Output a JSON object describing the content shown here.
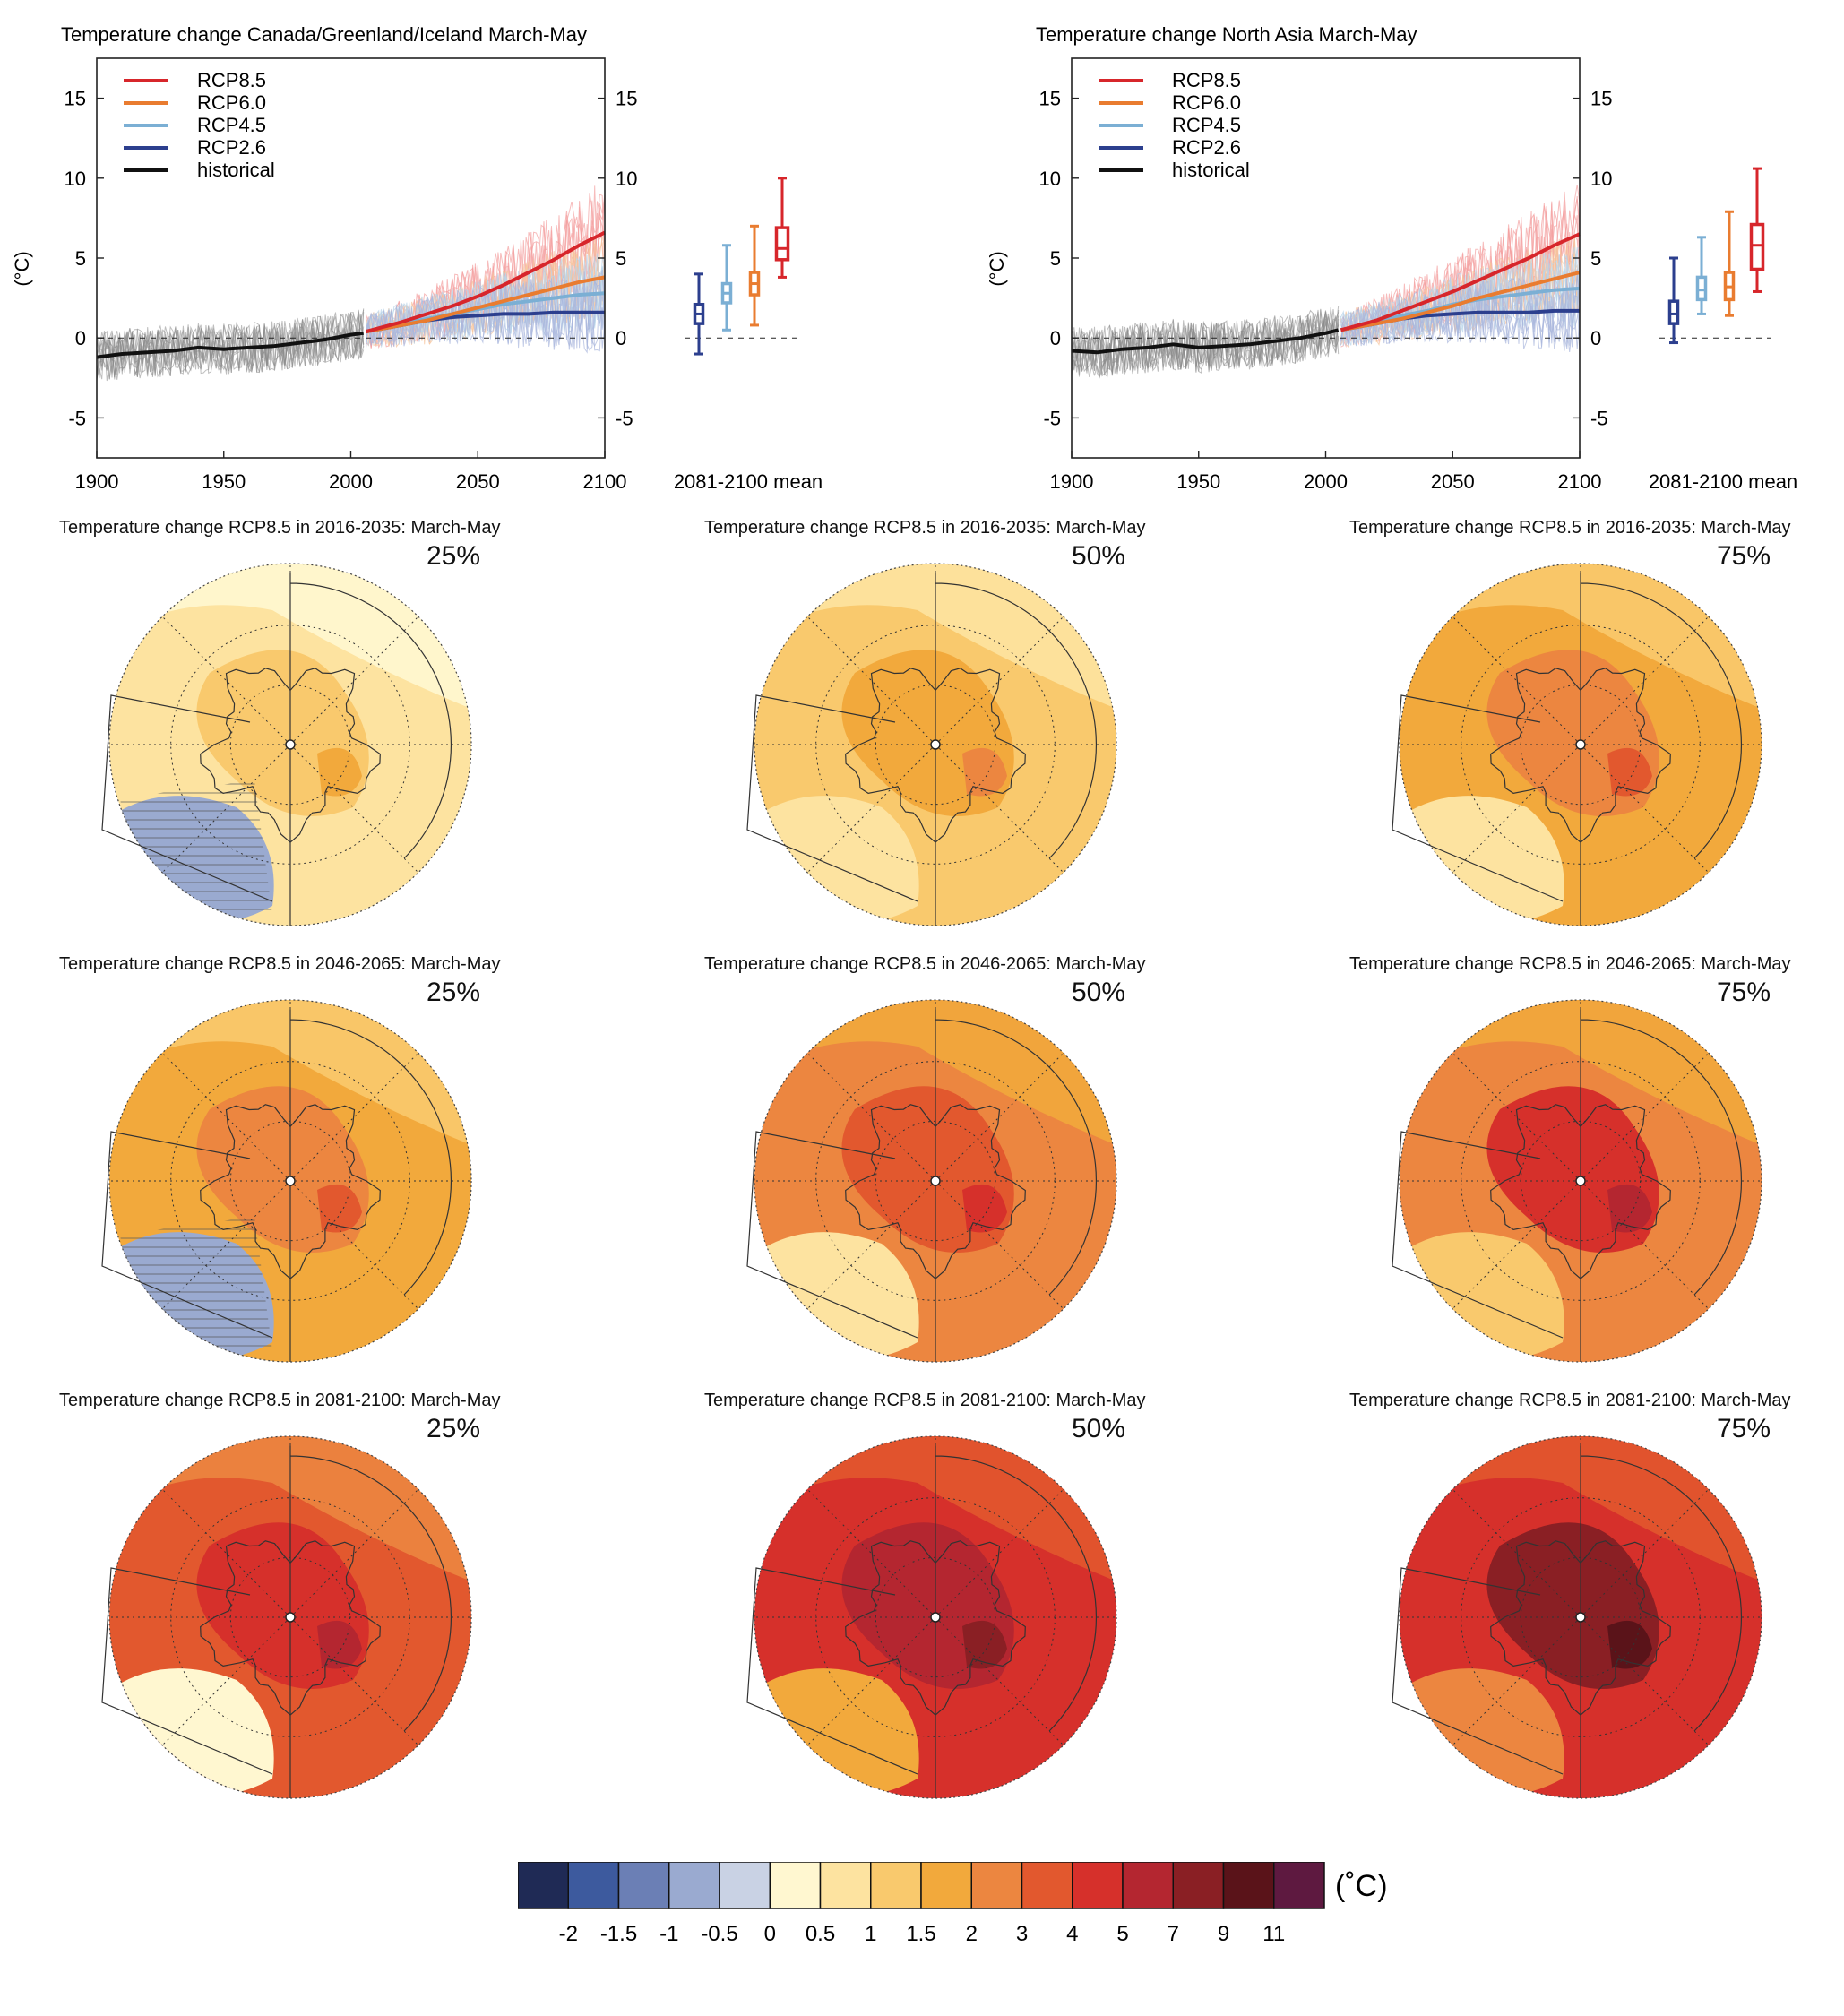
{
  "chart_data": [
    {
      "type": "line",
      "title": "Temperature change Canada/Greenland/Iceland March-May",
      "ylabel": "(°C)",
      "xlim": [
        1900,
        2100
      ],
      "ylim": [
        -7.5,
        17.5
      ],
      "xticks": [
        "1900",
        "1950",
        "2000",
        "2050",
        "2100"
      ],
      "yticks": [
        "-5",
        "0",
        "5",
        "10",
        "15"
      ],
      "legend": [
        "RCP8.5",
        "RCP6.0",
        "RCP4.5",
        "RCP2.6",
        "historical"
      ],
      "legend_position": "top-left",
      "series": [
        {
          "name": "historical",
          "color": "#111111",
          "x": [
            1900,
            1910,
            1920,
            1930,
            1940,
            1950,
            1960,
            1970,
            1980,
            1990,
            2000,
            2005
          ],
          "y": [
            -1.2,
            -1.0,
            -0.9,
            -0.8,
            -0.6,
            -0.7,
            -0.6,
            -0.5,
            -0.3,
            -0.1,
            0.2,
            0.3
          ]
        },
        {
          "name": "RCP2.6",
          "color": "#2c3f8e",
          "x": [
            2006,
            2020,
            2030,
            2040,
            2050,
            2060,
            2070,
            2080,
            2090,
            2100
          ],
          "y": [
            0.4,
            0.8,
            1.1,
            1.3,
            1.4,
            1.5,
            1.5,
            1.6,
            1.6,
            1.6
          ]
        },
        {
          "name": "RCP4.5",
          "color": "#7bafd4",
          "x": [
            2006,
            2020,
            2030,
            2040,
            2050,
            2060,
            2070,
            2080,
            2090,
            2100
          ],
          "y": [
            0.4,
            0.9,
            1.2,
            1.5,
            1.8,
            2.1,
            2.3,
            2.5,
            2.7,
            2.8
          ]
        },
        {
          "name": "RCP6.0",
          "color": "#e97c30",
          "x": [
            2006,
            2020,
            2030,
            2040,
            2050,
            2060,
            2070,
            2080,
            2090,
            2100
          ],
          "y": [
            0.4,
            0.8,
            1.1,
            1.5,
            1.9,
            2.3,
            2.7,
            3.1,
            3.5,
            3.8
          ]
        },
        {
          "name": "RCP8.5",
          "color": "#d7262b",
          "x": [
            2006,
            2020,
            2030,
            2040,
            2050,
            2060,
            2070,
            2080,
            2090,
            2100
          ],
          "y": [
            0.4,
            1.0,
            1.5,
            2.0,
            2.6,
            3.3,
            4.1,
            4.9,
            5.8,
            6.6
          ]
        }
      ],
      "boxplots_2081_2100_mean": {
        "label": "2081-2100 mean",
        "boxes": [
          {
            "name": "RCP2.6",
            "color": "#2c3f8e",
            "min": -1.0,
            "q1": 0.9,
            "median": 1.5,
            "q3": 2.1,
            "max": 4.0
          },
          {
            "name": "RCP4.5",
            "color": "#7bafd4",
            "min": 0.5,
            "q1": 2.2,
            "median": 2.8,
            "q3": 3.4,
            "max": 5.8
          },
          {
            "name": "RCP6.0",
            "color": "#e97c30",
            "min": 0.8,
            "q1": 2.7,
            "median": 3.4,
            "q3": 4.1,
            "max": 7.0
          },
          {
            "name": "RCP8.5",
            "color": "#d7262b",
            "min": 3.8,
            "q1": 4.9,
            "median": 5.6,
            "q3": 6.9,
            "max": 10.0
          }
        ]
      }
    },
    {
      "type": "line",
      "title": "Temperature change North Asia March-May",
      "ylabel": "(°C)",
      "xlim": [
        1900,
        2100
      ],
      "ylim": [
        -7.5,
        17.5
      ],
      "xticks": [
        "1900",
        "1950",
        "2000",
        "2050",
        "2100"
      ],
      "yticks": [
        "-5",
        "0",
        "5",
        "10",
        "15"
      ],
      "legend": [
        "RCP8.5",
        "RCP6.0",
        "RCP4.5",
        "RCP2.6",
        "historical"
      ],
      "legend_position": "top-left",
      "series": [
        {
          "name": "historical",
          "color": "#111111",
          "x": [
            1900,
            1910,
            1920,
            1930,
            1940,
            1950,
            1960,
            1970,
            1980,
            1990,
            2000,
            2005
          ],
          "y": [
            -0.8,
            -0.9,
            -0.7,
            -0.6,
            -0.4,
            -0.6,
            -0.5,
            -0.4,
            -0.2,
            0.0,
            0.3,
            0.5
          ]
        },
        {
          "name": "RCP2.6",
          "color": "#2c3f8e",
          "x": [
            2006,
            2020,
            2030,
            2040,
            2050,
            2060,
            2070,
            2080,
            2090,
            2100
          ],
          "y": [
            0.5,
            0.9,
            1.2,
            1.4,
            1.5,
            1.6,
            1.6,
            1.6,
            1.7,
            1.7
          ]
        },
        {
          "name": "RCP4.5",
          "color": "#7bafd4",
          "x": [
            2006,
            2020,
            2030,
            2040,
            2050,
            2060,
            2070,
            2080,
            2090,
            2100
          ],
          "y": [
            0.5,
            1.0,
            1.4,
            1.7,
            2.1,
            2.4,
            2.6,
            2.8,
            3.0,
            3.1
          ]
        },
        {
          "name": "RCP6.0",
          "color": "#e97c30",
          "x": [
            2006,
            2020,
            2030,
            2040,
            2050,
            2060,
            2070,
            2080,
            2090,
            2100
          ],
          "y": [
            0.5,
            0.9,
            1.2,
            1.6,
            2.0,
            2.5,
            2.9,
            3.3,
            3.7,
            4.1
          ]
        },
        {
          "name": "RCP8.5",
          "color": "#d7262b",
          "x": [
            2006,
            2020,
            2030,
            2040,
            2050,
            2060,
            2070,
            2080,
            2090,
            2100
          ],
          "y": [
            0.5,
            1.1,
            1.7,
            2.3,
            2.9,
            3.6,
            4.3,
            5.0,
            5.8,
            6.5
          ]
        }
      ],
      "boxplots_2081_2100_mean": {
        "label": "2081-2100 mean",
        "boxes": [
          {
            "name": "RCP2.6",
            "color": "#2c3f8e",
            "min": -0.3,
            "q1": 0.9,
            "median": 1.5,
            "q3": 2.3,
            "max": 5.0
          },
          {
            "name": "RCP4.5",
            "color": "#7bafd4",
            "min": 1.5,
            "q1": 2.4,
            "median": 3.0,
            "q3": 3.8,
            "max": 6.3
          },
          {
            "name": "RCP6.0",
            "color": "#e97c30",
            "min": 1.4,
            "q1": 2.4,
            "median": 3.2,
            "q3": 4.1,
            "max": 7.9
          },
          {
            "name": "RCP8.5",
            "color": "#d7262b",
            "min": 2.9,
            "q1": 4.3,
            "median": 5.8,
            "q3": 7.1,
            "max": 10.6
          }
        ]
      }
    },
    {
      "type": "heatmap",
      "maps": [
        {
          "title": "Temperature change RCP8.5 in 2016-2035: March-May",
          "percentile": "25%",
          "base_level": 6,
          "pole_level": 7,
          "warm_level": 8,
          "cold_level": 3
        },
        {
          "title": "Temperature change RCP8.5 in 2016-2035: March-May",
          "percentile": "50%",
          "base_level": 7,
          "pole_level": 8,
          "warm_level": 9,
          "cold_level": 6
        },
        {
          "title": "Temperature change RCP8.5 in 2016-2035: March-May",
          "percentile": "75%",
          "base_level": 8,
          "pole_level": 9,
          "warm_level": 10,
          "cold_level": 6
        },
        {
          "title": "Temperature change RCP8.5 in 2046-2065: March-May",
          "percentile": "25%",
          "base_level": 8,
          "pole_level": 9,
          "warm_level": 10,
          "cold_level": 3
        },
        {
          "title": "Temperature change RCP8.5 in 2046-2065: March-May",
          "percentile": "50%",
          "base_level": 9,
          "pole_level": 10,
          "warm_level": 11,
          "cold_level": 6
        },
        {
          "title": "Temperature change RCP8.5 in 2046-2065: March-May",
          "percentile": "75%",
          "base_level": 9,
          "pole_level": 11,
          "warm_level": 12,
          "cold_level": 7
        },
        {
          "title": "Temperature change RCP8.5 in 2081-2100: March-May",
          "percentile": "25%",
          "base_level": 10,
          "pole_level": 11,
          "warm_level": 12,
          "cold_level": 5
        },
        {
          "title": "Temperature change RCP8.5 in 2081-2100: March-May",
          "percentile": "50%",
          "base_level": 11,
          "pole_level": 12,
          "warm_level": 13,
          "cold_level": 8
        },
        {
          "title": "Temperature change RCP8.5 in 2081-2100: March-May",
          "percentile": "75%",
          "base_level": 11,
          "pole_level": 13,
          "warm_level": 14,
          "cold_level": 9
        }
      ]
    }
  ],
  "colorbar": {
    "unit": "(˚C)",
    "labels": [
      "-2",
      "-1.5",
      "-1",
      "-0.5",
      "0",
      "0.5",
      "1",
      "1.5",
      "2",
      "3",
      "4",
      "5",
      "7",
      "9",
      "11"
    ],
    "colors": [
      "#1f2a55",
      "#3d5a9e",
      "#6b7fb5",
      "#9aaad0",
      "#c9d2e4",
      "#fff7d0",
      "#fde3a0",
      "#f9c96d",
      "#f2a93c",
      "#ec8640",
      "#e2582e",
      "#d6302b",
      "#b42630",
      "#8a1f24",
      "#5a1319",
      "#5e1940"
    ]
  }
}
